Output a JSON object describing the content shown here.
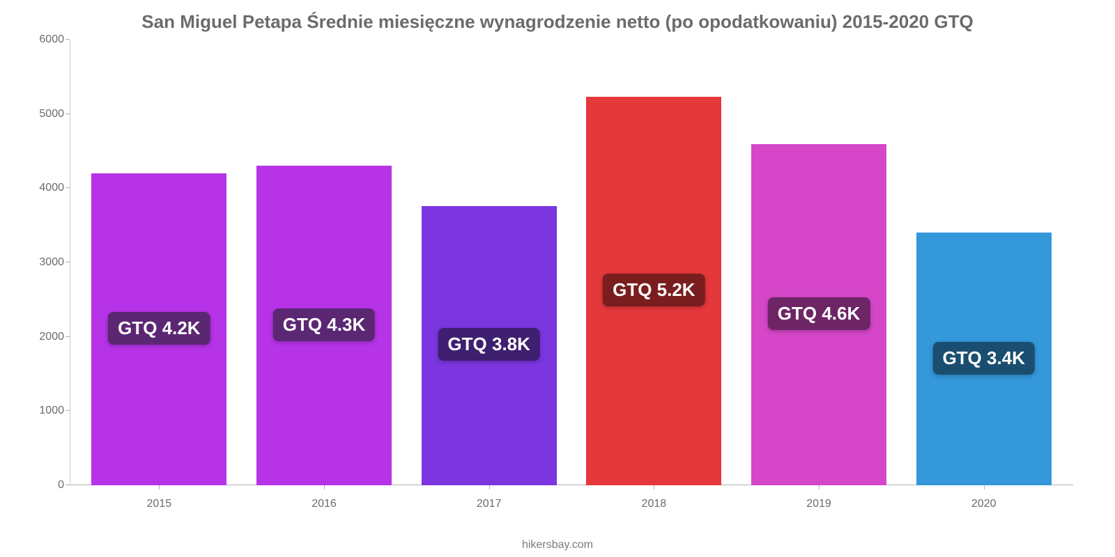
{
  "chart": {
    "type": "bar",
    "title": "San Miguel Petapa Średnie miesięczne wynagrodzenie netto (po opodatkowaniu) 2015-2020 GTQ",
    "title_fontsize": 26,
    "title_color": "#6b6b6b",
    "background_color": "#ffffff",
    "axis_color": "#b0b0b0",
    "left_axis_color": "#c9c9f0",
    "label_color": "#6b6b6b",
    "label_fontsize": 16,
    "value_label_fontsize": 26,
    "value_label_text_color": "#ffffff",
    "bar_width": 0.82,
    "ylim": [
      0,
      6000
    ],
    "ytick_step": 1000,
    "yticks": [
      "0",
      "1000",
      "2000",
      "3000",
      "4000",
      "5000",
      "6000"
    ],
    "categories": [
      "2015",
      "2016",
      "2017",
      "2018",
      "2019",
      "2020"
    ],
    "values": [
      4200,
      4300,
      3760,
      5230,
      4590,
      3400
    ],
    "value_labels": [
      "GTQ 4.2K",
      "GTQ 4.3K",
      "GTQ 3.8K",
      "GTQ 5.2K",
      "GTQ 4.6K",
      "GTQ 3.4K"
    ],
    "bar_colors": [
      "#b733e7",
      "#b733e7",
      "#7b36e0",
      "#e5383b",
      "#d646c9",
      "#3498db"
    ],
    "label_bg_colors": [
      "#5b2773",
      "#5b2773",
      "#3e1f70",
      "#7a1d1f",
      "#6d2566",
      "#1a4e70"
    ],
    "source": "hikersbay.com"
  }
}
